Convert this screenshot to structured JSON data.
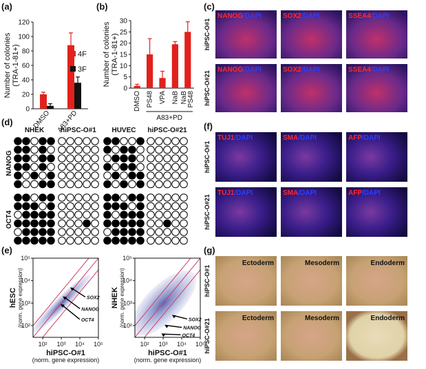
{
  "labels": {
    "a": "(a)",
    "b": "(b)",
    "c": "(c)",
    "d": "(d)",
    "e": "(e)",
    "f": "(f)",
    "g": "(g)"
  },
  "chart_data": [
    {
      "type": "bar",
      "ylabel": [
        "Number of colonies",
        "(TRA-1-81+)"
      ],
      "categories": [
        "DMSO",
        "A83+PD"
      ],
      "series": [
        {
          "name": "4F",
          "color": "#e3211c",
          "values": [
            20,
            88
          ],
          "errors": [
            3,
            17
          ]
        },
        {
          "name": "3F",
          "color": "#111111",
          "values": [
            4,
            36
          ],
          "errors": [
            3,
            8
          ]
        }
      ],
      "ylim": [
        0,
        120
      ],
      "yticks": [
        0,
        20,
        40,
        60,
        80,
        100,
        120
      ],
      "legend": "right"
    },
    {
      "type": "bar",
      "ylabel": [
        "Number of colonies",
        "(TRA-1-81+)"
      ],
      "categories": [
        "DMSO",
        "PS48",
        "VPA",
        "NaB",
        "NaB PS48"
      ],
      "group_label": "A83+PD",
      "series": [
        {
          "color": "#e3211c",
          "values": [
            1,
            15,
            4.5,
            19.5,
            25
          ],
          "errors": [
            0.7,
            7,
            3,
            1.2,
            4.5
          ]
        }
      ],
      "ylim": [
        0,
        30
      ],
      "yticks": [
        0,
        5,
        10,
        15,
        20,
        25,
        30
      ]
    },
    {
      "type": "scatter",
      "log": true,
      "xlabel": [
        "hiPSC-O#1",
        "(norm. gene expression)"
      ],
      "ylabel": [
        "hESC",
        "(norm. gene expression)"
      ],
      "xlim": [
        30,
        100000
      ],
      "ylim": [
        30,
        100000
      ],
      "xticks": [
        {
          "value": 100,
          "label": "10²"
        },
        {
          "value": 1000,
          "label": "10³"
        },
        {
          "value": 10000,
          "label": "10⁴"
        },
        {
          "value": 100000,
          "label": "10⁵"
        }
      ],
      "yticks": [
        {
          "value": 100,
          "label": "10²"
        },
        {
          "value": 1000,
          "label": "10³"
        },
        {
          "value": 10000,
          "label": "10⁴"
        },
        {
          "value": 100000,
          "label": "10⁵"
        }
      ],
      "annotations": [
        {
          "text": "SOX2",
          "x": 3000,
          "y": 5000
        },
        {
          "text": "NANOG",
          "x": 1200,
          "y": 2000
        },
        {
          "text": "OCT4",
          "x": 900,
          "y": 900
        }
      ]
    },
    {
      "type": "scatter",
      "log": true,
      "xlabel": [
        "hiPSC-O#1",
        "(norm. gene expression)"
      ],
      "ylabel": [
        "NHEK",
        "(norm. gene expression)"
      ],
      "xlim": [
        30,
        100000
      ],
      "ylim": [
        30,
        100000
      ],
      "xticks": [
        {
          "value": 100,
          "label": "10²"
        },
        {
          "value": 1000,
          "label": "10³"
        },
        {
          "value": 10000,
          "label": "10⁴"
        },
        {
          "value": 100000,
          "label": "10⁵"
        }
      ],
      "yticks": [
        {
          "value": 100,
          "label": "10²"
        },
        {
          "value": 1000,
          "label": "10³"
        },
        {
          "value": 10000,
          "label": "10⁴"
        },
        {
          "value": 100000,
          "label": "10⁵"
        }
      ],
      "annotations": [
        {
          "text": "SOX2",
          "x": 3000,
          "y": 300
        },
        {
          "text": "NANOG",
          "x": 1200,
          "y": 110
        },
        {
          "text": "OCT4",
          "x": 800,
          "y": 45
        }
      ]
    }
  ],
  "c": {
    "rows": [
      "hiPSC-O#1",
      "hiPSC-O#21"
    ],
    "stains": [
      {
        "marker": "NANOG",
        "counter": "/DAPI"
      },
      {
        "marker": "SOX2",
        "counter": "/DAPI"
      },
      {
        "marker": "SSEA4",
        "counter": "/DAPI"
      }
    ]
  },
  "f": {
    "rows": [
      "hiPSC-O#1",
      "hiPSC-O#21"
    ],
    "stains": [
      {
        "marker": "TUJ1",
        "counter": "/DAPI"
      },
      {
        "marker": "SMA",
        "counter": "/DAPI"
      },
      {
        "marker": "AFP",
        "counter": "/DAPI"
      }
    ]
  },
  "g": {
    "rows": [
      "hiPSC-O#1",
      "hiPSC-O#21"
    ],
    "layers": [
      "Ectoderm",
      "Mesoderm",
      "Endoderm"
    ]
  },
  "d": {
    "columns": [
      "NHEK",
      "hiPSC-O#1",
      "HUVEC",
      "hiPSC-O#21"
    ],
    "genes": [
      {
        "name": "NANOG",
        "samples": [
          [
            [
              1,
              1,
              0,
              1,
              1
            ],
            [
              1,
              1,
              0,
              1,
              0
            ],
            [
              1,
              1,
              0,
              1,
              1
            ],
            [
              1,
              1,
              0,
              1,
              0
            ],
            [
              1,
              0,
              1,
              0,
              1
            ],
            [
              1,
              0,
              0,
              1,
              1
            ]
          ],
          [
            [
              0,
              0,
              0,
              0,
              0
            ],
            [
              0,
              0,
              0,
              0,
              0
            ],
            [
              0,
              0,
              0,
              0,
              0
            ],
            [
              0,
              0,
              0,
              0,
              0
            ],
            [
              0,
              0,
              0,
              0,
              0
            ],
            [
              0,
              0,
              0,
              0,
              0
            ]
          ],
          [
            [
              1,
              1,
              0,
              0,
              1
            ],
            [
              1,
              0,
              1,
              1,
              0
            ],
            [
              0,
              1,
              1,
              1,
              0
            ],
            [
              1,
              0,
              1,
              1,
              0
            ],
            [
              0,
              1,
              0,
              1,
              1
            ],
            [
              1,
              0,
              1,
              0,
              1
            ]
          ],
          [
            [
              0,
              0,
              0,
              0,
              0
            ],
            [
              0,
              0,
              0,
              0,
              0
            ],
            [
              0,
              0,
              0,
              0,
              0
            ],
            [
              0,
              0,
              0,
              0,
              0
            ],
            [
              0,
              0,
              0,
              0,
              0
            ],
            [
              0,
              0,
              0,
              0,
              0
            ]
          ]
        ]
      },
      {
        "name": "OCT4",
        "samples": [
          [
            [
              1,
              1,
              0,
              1,
              1
            ],
            [
              1,
              1,
              1,
              0,
              1
            ],
            [
              0,
              1,
              1,
              1,
              1
            ],
            [
              1,
              1,
              1,
              1,
              1
            ],
            [
              0,
              1,
              1,
              1,
              1
            ],
            [
              1,
              1,
              1,
              1,
              1
            ]
          ],
          [
            [
              0,
              0,
              0,
              0,
              0
            ],
            [
              0,
              0,
              0,
              0,
              0
            ],
            [
              0,
              0,
              0,
              0,
              0
            ],
            [
              0,
              0,
              0,
              1,
              0
            ],
            [
              0,
              0,
              0,
              0,
              0
            ],
            [
              0,
              0,
              0,
              0,
              0
            ]
          ],
          [
            [
              1,
              1,
              0,
              1,
              1
            ],
            [
              1,
              1,
              1,
              0,
              1
            ],
            [
              1,
              0,
              1,
              1,
              1
            ],
            [
              1,
              1,
              1,
              1,
              1
            ],
            [
              0,
              1,
              1,
              1,
              1
            ],
            [
              1,
              1,
              1,
              1,
              1
            ]
          ],
          [
            [
              0,
              0,
              0,
              0,
              0
            ],
            [
              0,
              0,
              0,
              0,
              0
            ],
            [
              0,
              0,
              0,
              0,
              0
            ],
            [
              0,
              0,
              1,
              0,
              0
            ],
            [
              0,
              0,
              0,
              0,
              0
            ],
            [
              0,
              0,
              0,
              0,
              0
            ]
          ]
        ]
      }
    ]
  }
}
